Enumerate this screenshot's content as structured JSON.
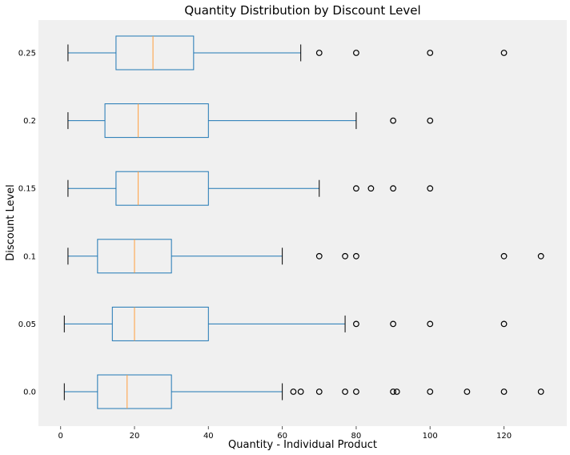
{
  "chart_data": {
    "type": "boxplot",
    "orientation": "horizontal",
    "title": "Quantity Distribution by Discount Level",
    "xlabel": "Quantity - Individual Product",
    "ylabel": "Discount Level",
    "xlim": [
      -6,
      137
    ],
    "xticks": [
      0,
      20,
      40,
      60,
      80,
      100,
      120
    ],
    "grid": false,
    "categories": [
      "0.0",
      "0.05",
      "0.1",
      "0.15",
      "0.2",
      "0.25"
    ],
    "boxes": [
      {
        "label": "0.0",
        "whisker_low": 1,
        "q1": 10,
        "median": 18,
        "q3": 30,
        "whisker_high": 60,
        "outliers": [
          63,
          65,
          70,
          77,
          80,
          90,
          91,
          100,
          110,
          120,
          130
        ]
      },
      {
        "label": "0.05",
        "whisker_low": 1,
        "q1": 14,
        "median": 20,
        "q3": 40,
        "whisker_high": 77,
        "outliers": [
          80,
          90,
          100,
          120
        ]
      },
      {
        "label": "0.1",
        "whisker_low": 2,
        "q1": 10,
        "median": 20,
        "q3": 30,
        "whisker_high": 60,
        "outliers": [
          70,
          77,
          80,
          120,
          130
        ]
      },
      {
        "label": "0.15",
        "whisker_low": 2,
        "q1": 15,
        "median": 21,
        "q3": 40,
        "whisker_high": 70,
        "outliers": [
          80,
          84,
          90,
          100
        ]
      },
      {
        "label": "0.2",
        "whisker_low": 2,
        "q1": 12,
        "median": 21,
        "q3": 40,
        "whisker_high": 80,
        "outliers": [
          90,
          100
        ]
      },
      {
        "label": "0.25",
        "whisker_low": 2,
        "q1": 15,
        "median": 25,
        "q3": 36,
        "whisker_high": 65,
        "outliers": [
          70,
          80,
          100,
          120
        ]
      }
    ],
    "colors": {
      "box": "#1f77b4",
      "median": "#ff9e3d",
      "whisker_cap": "#000000",
      "flier": "#000000",
      "plot_background": "#f0f0f0"
    }
  }
}
